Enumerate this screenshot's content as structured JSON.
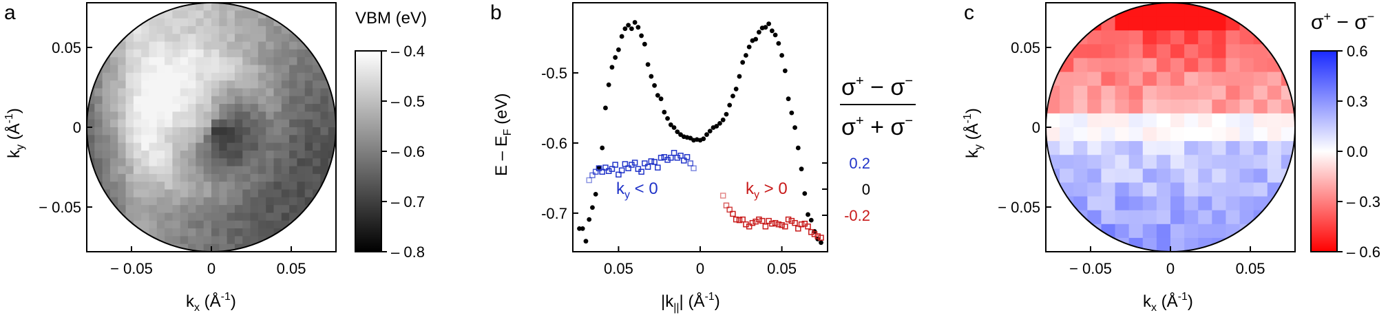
{
  "chart_data": [
    {
      "panel": "a",
      "type": "heatmap",
      "xlabel": "kx (Å-1)",
      "ylabel": "ky (Å-1)",
      "xticks": [
        "− 0.05",
        "0",
        "0.05"
      ],
      "yticks": [
        "0.05",
        "0",
        "− 0.05"
      ],
      "tick_values": [
        -0.05,
        0,
        0.05
      ],
      "xlim": [
        -0.078,
        0.078
      ],
      "ylim": [
        -0.078,
        0.078
      ],
      "colorbar": {
        "title": "VBM (eV)",
        "ticks": [
          "– 0.4",
          "– 0.5",
          "– 0.6",
          "– 0.7",
          "– 0.8"
        ],
        "tick_values": [
          -0.4,
          -0.5,
          -0.6,
          -0.7,
          -0.8
        ],
        "range": [
          -0.8,
          -0.4
        ],
        "colormap": [
          "#000000",
          "#ffffff"
        ]
      },
      "grid": false
    },
    {
      "panel": "b",
      "type": "scatter",
      "xlabel": "|k||| (Å-1)",
      "ylabel": "E – EF (eV)",
      "xticks": [
        "0.05",
        "0",
        "0.05"
      ],
      "xlim": [
        -0.078,
        0.078
      ],
      "ylim": [
        -0.755,
        -0.4
      ],
      "yticks": [
        "-0.5",
        "-0.6",
        "-0.7"
      ],
      "ytick_values": [
        -0.5,
        -0.6,
        -0.7
      ],
      "vbm_points": [
        [
          -0.074,
          -0.722
        ],
        [
          -0.072,
          -0.722
        ],
        [
          -0.07,
          -0.74
        ],
        [
          -0.068,
          -0.709
        ],
        [
          -0.066,
          -0.692
        ],
        [
          -0.064,
          -0.673
        ],
        [
          -0.062,
          -0.635
        ],
        [
          -0.06,
          -0.607
        ],
        [
          -0.058,
          -0.55
        ],
        [
          -0.056,
          -0.517
        ],
        [
          -0.054,
          -0.492
        ],
        [
          -0.052,
          -0.478
        ],
        [
          -0.05,
          -0.467
        ],
        [
          -0.048,
          -0.448
        ],
        [
          -0.046,
          -0.437
        ],
        [
          -0.044,
          -0.432
        ],
        [
          -0.042,
          -0.437
        ],
        [
          -0.04,
          -0.428
        ],
        [
          -0.038,
          -0.435
        ],
        [
          -0.036,
          -0.447
        ],
        [
          -0.034,
          -0.459
        ],
        [
          -0.032,
          -0.488
        ],
        [
          -0.03,
          -0.505
        ],
        [
          -0.028,
          -0.518
        ],
        [
          -0.026,
          -0.532
        ],
        [
          -0.024,
          -0.537
        ],
        [
          -0.022,
          -0.556
        ],
        [
          -0.02,
          -0.565
        ],
        [
          -0.018,
          -0.574
        ],
        [
          -0.016,
          -0.578
        ],
        [
          -0.014,
          -0.584
        ],
        [
          -0.012,
          -0.588
        ],
        [
          -0.01,
          -0.591
        ],
        [
          -0.008,
          -0.592
        ],
        [
          -0.006,
          -0.593
        ],
        [
          -0.004,
          -0.596
        ],
        [
          -0.002,
          -0.595
        ],
        [
          0.0,
          -0.596
        ],
        [
          0.002,
          -0.594
        ],
        [
          0.004,
          -0.588
        ],
        [
          0.006,
          -0.583
        ],
        [
          0.008,
          -0.578
        ],
        [
          0.01,
          -0.576
        ],
        [
          0.012,
          -0.572
        ],
        [
          0.014,
          -0.567
        ],
        [
          0.016,
          -0.559
        ],
        [
          0.018,
          -0.546
        ],
        [
          0.02,
          -0.533
        ],
        [
          0.022,
          -0.523
        ],
        [
          0.024,
          -0.505
        ],
        [
          0.026,
          -0.485
        ],
        [
          0.028,
          -0.475
        ],
        [
          0.03,
          -0.463
        ],
        [
          0.032,
          -0.454
        ],
        [
          0.034,
          -0.452
        ],
        [
          0.036,
          -0.442
        ],
        [
          0.038,
          -0.436
        ],
        [
          0.04,
          -0.435
        ],
        [
          0.042,
          -0.43
        ],
        [
          0.044,
          -0.44
        ],
        [
          0.046,
          -0.446
        ],
        [
          0.048,
          -0.458
        ],
        [
          0.05,
          -0.475
        ],
        [
          0.052,
          -0.497
        ],
        [
          0.054,
          -0.537
        ],
        [
          0.056,
          -0.557
        ],
        [
          0.058,
          -0.578
        ],
        [
          0.06,
          -0.607
        ],
        [
          0.062,
          -0.637
        ],
        [
          0.064,
          -0.672
        ],
        [
          0.066,
          -0.702
        ],
        [
          0.068,
          -0.71
        ],
        [
          0.07,
          -0.726
        ],
        [
          0.072,
          -0.737
        ],
        [
          0.074,
          -0.742
        ]
      ],
      "cd_ky_negative": {
        "label": "ky < 0",
        "color": "#2033c8",
        "points": [
          [
            -0.068,
            -0.653
          ],
          [
            -0.066,
            -0.646
          ],
          [
            -0.064,
            -0.641
          ],
          [
            -0.062,
            -0.636
          ],
          [
            -0.06,
            -0.641
          ],
          [
            -0.058,
            -0.635
          ],
          [
            -0.056,
            -0.64
          ],
          [
            -0.054,
            -0.637
          ],
          [
            -0.052,
            -0.631
          ],
          [
            -0.05,
            -0.645
          ],
          [
            -0.048,
            -0.639
          ],
          [
            -0.046,
            -0.63
          ],
          [
            -0.044,
            -0.636
          ],
          [
            -0.042,
            -0.631
          ],
          [
            -0.04,
            -0.628
          ],
          [
            -0.038,
            -0.637
          ],
          [
            -0.036,
            -0.641
          ],
          [
            -0.034,
            -0.629
          ],
          [
            -0.032,
            -0.634
          ],
          [
            -0.03,
            -0.626
          ],
          [
            -0.028,
            -0.627
          ],
          [
            -0.026,
            -0.635
          ],
          [
            -0.024,
            -0.621
          ],
          [
            -0.022,
            -0.62
          ],
          [
            -0.02,
            -0.624
          ],
          [
            -0.018,
            -0.621
          ],
          [
            -0.016,
            -0.614
          ],
          [
            -0.014,
            -0.621
          ],
          [
            -0.012,
            -0.618
          ],
          [
            -0.01,
            -0.625
          ],
          [
            -0.008,
            -0.62
          ],
          [
            -0.006,
            -0.629
          ],
          [
            -0.004,
            -0.636
          ]
        ]
      },
      "cd_ky_positive": {
        "label": "ky > 0",
        "color": "#c81a1a",
        "points": [
          [
            0.014,
            -0.675
          ],
          [
            0.016,
            -0.689
          ],
          [
            0.018,
            -0.695
          ],
          [
            0.02,
            -0.701
          ],
          [
            0.022,
            -0.709
          ],
          [
            0.024,
            -0.71
          ],
          [
            0.026,
            -0.709
          ],
          [
            0.028,
            -0.716
          ],
          [
            0.03,
            -0.719
          ],
          [
            0.032,
            -0.714
          ],
          [
            0.034,
            -0.712
          ],
          [
            0.036,
            -0.709
          ],
          [
            0.038,
            -0.711
          ],
          [
            0.04,
            -0.719
          ],
          [
            0.042,
            -0.711
          ],
          [
            0.044,
            -0.715
          ],
          [
            0.046,
            -0.714
          ],
          [
            0.048,
            -0.716
          ],
          [
            0.05,
            -0.717
          ],
          [
            0.052,
            -0.719
          ],
          [
            0.054,
            -0.709
          ],
          [
            0.056,
            -0.711
          ],
          [
            0.058,
            -0.714
          ],
          [
            0.06,
            -0.722
          ],
          [
            0.062,
            -0.716
          ],
          [
            0.064,
            -0.715
          ],
          [
            0.066,
            -0.719
          ],
          [
            0.068,
            -0.727
          ],
          [
            0.07,
            -0.73
          ],
          [
            0.072,
            -0.733
          ],
          [
            0.074,
            -0.735
          ]
        ]
      },
      "right_axis": {
        "label_num": "σ+ − σ−",
        "label_den": "σ+ + σ−",
        "ticks": [
          "0.2",
          "0",
          "-0.2"
        ],
        "tick_values": [
          0.2,
          0,
          -0.2
        ],
        "tick_colors": [
          "#2033c8",
          "#000000",
          "#c81a1a"
        ]
      },
      "grid": false
    },
    {
      "panel": "c",
      "type": "heatmap",
      "xlabel": "kx (Å-1)",
      "ylabel": "ky (Å-1)",
      "xticks": [
        "− 0.05",
        "0",
        "0.05"
      ],
      "yticks": [
        "0.05",
        "0",
        "− 0.05"
      ],
      "tick_values": [
        -0.05,
        0,
        0.05
      ],
      "xlim": [
        -0.078,
        0.078
      ],
      "ylim": [
        -0.078,
        0.078
      ],
      "colorbar": {
        "title": "σ+ − σ−",
        "ticks": [
          "0.6",
          "0.3",
          "0.0",
          "– 0.3",
          "– 0.6"
        ],
        "tick_values": [
          0.6,
          0.3,
          0.0,
          -0.3,
          -0.6
        ],
        "range": [
          -0.6,
          0.6
        ],
        "colormap": [
          "#ff0000",
          "#ffffff",
          "#1a2aff"
        ]
      },
      "grid": false
    }
  ],
  "panel_labels": [
    "a",
    "b",
    "c"
  ]
}
